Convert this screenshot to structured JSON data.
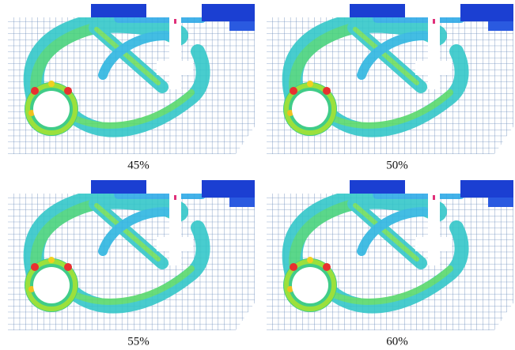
{
  "panels": [
    {
      "label": "45%"
    },
    {
      "label": "50%"
    },
    {
      "label": "55%"
    },
    {
      "label": "60%"
    }
  ]
}
